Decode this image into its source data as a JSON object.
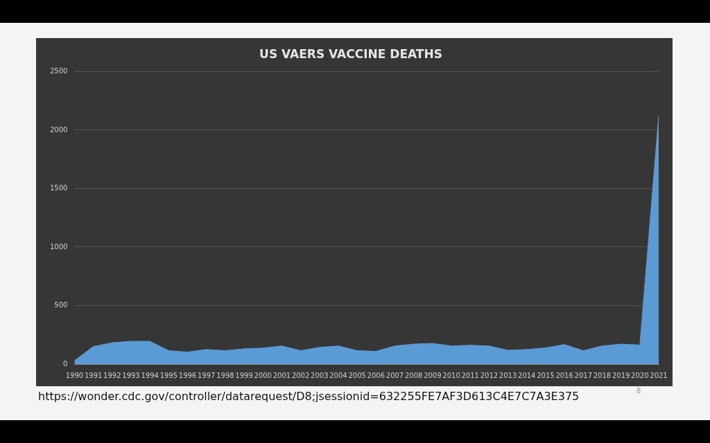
{
  "chart_data": {
    "type": "area",
    "title": "US VAERS VACCINE DEATHS",
    "categories": [
      "1990",
      "1991",
      "1992",
      "1993",
      "1994",
      "1995",
      "1996",
      "1997",
      "1998",
      "1999",
      "2000",
      "2001",
      "2002",
      "2003",
      "2004",
      "2005",
      "2006",
      "2007",
      "2008",
      "2009",
      "2010",
      "2011",
      "2012",
      "2013",
      "2014",
      "2015",
      "2016",
      "2017",
      "2018",
      "2019",
      "2020",
      "2021"
    ],
    "series": [
      {
        "color": "#5b9bd5",
        "values": [
          30,
          150,
          183,
          195,
          195,
          115,
          103,
          125,
          115,
          131,
          137,
          155,
          115,
          143,
          155,
          115,
          109,
          155,
          171,
          177,
          155,
          161,
          155,
          118,
          125,
          139,
          167,
          115,
          155,
          171,
          163,
          2120
        ]
      }
    ],
    "ylim": [
      0,
      2500
    ],
    "yticks": [
      0,
      500,
      1000,
      1500,
      2000,
      2500
    ],
    "grid": "y",
    "annotations": [
      "https://wonder.cdc.gov/controller/datarequest/D8;jsessionid=632255FE7AF3D613C4E7C7A3E375",
      "8"
    ]
  }
}
